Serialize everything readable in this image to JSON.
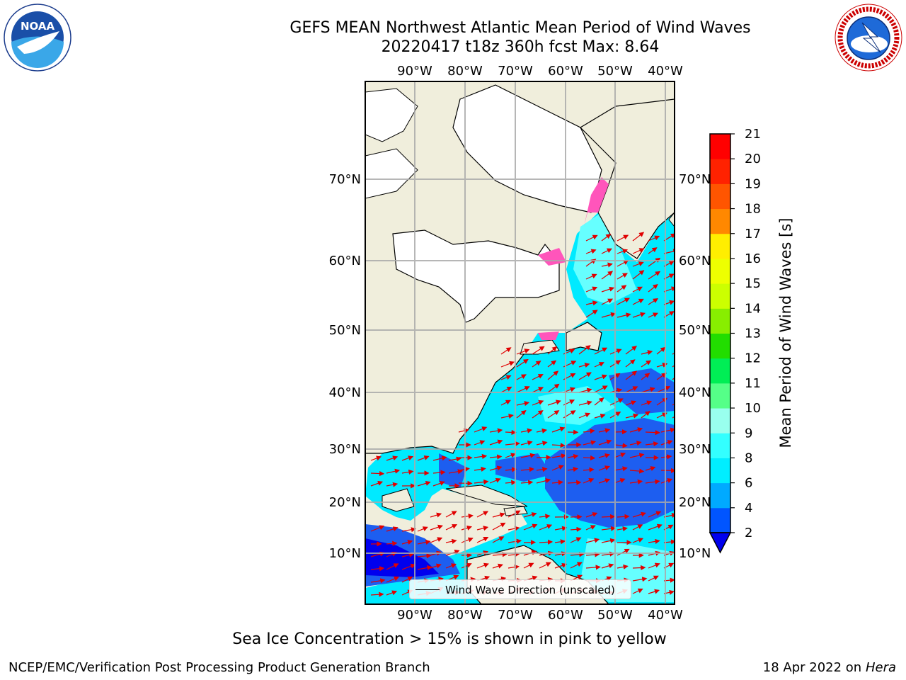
{
  "title_line1": "GEFS MEAN Northwest Atlantic Mean Period of Wind Waves",
  "title_line2": "20220417 t18z 360h fcst   Max: 8.64",
  "lon_labels": [
    "90°W",
    "80°W",
    "70°W",
    "60°W",
    "50°W",
    "40°W"
  ],
  "lat_labels": [
    "70°N",
    "60°N",
    "50°N",
    "40°N",
    "30°N",
    "20°N",
    "10°N"
  ],
  "legend": {
    "label": "Wind Wave Direction (unscaled)"
  },
  "colorbar": {
    "label": "Mean Period of Wind Waves [s]",
    "ticks": [
      "2",
      "4",
      "6",
      "8",
      "9",
      "10",
      "11",
      "12",
      "13",
      "14",
      "15",
      "16",
      "17",
      "18",
      "19",
      "20",
      "21"
    ],
    "colors": [
      "#0055ff",
      "#00aaff",
      "#00eeff",
      "#33ffff",
      "#66ffff",
      "#99ffee",
      "#55ff88",
      "#00ee55",
      "#22dd00",
      "#88ee00",
      "#ccff00",
      "#eeff00",
      "#ffee00",
      "#ffbb00",
      "#ff8800",
      "#ff5500",
      "#ff2200",
      "#ff0000"
    ],
    "under_color": "#0000ee"
  },
  "caption": "Sea Ice Concentration > 15% is shown in pink to yellow",
  "footer_left": "NCEP/EMC/Verification Post Processing Product Generation Branch",
  "footer_date": "18 Apr 2022 on",
  "footer_host": "Hera"
}
